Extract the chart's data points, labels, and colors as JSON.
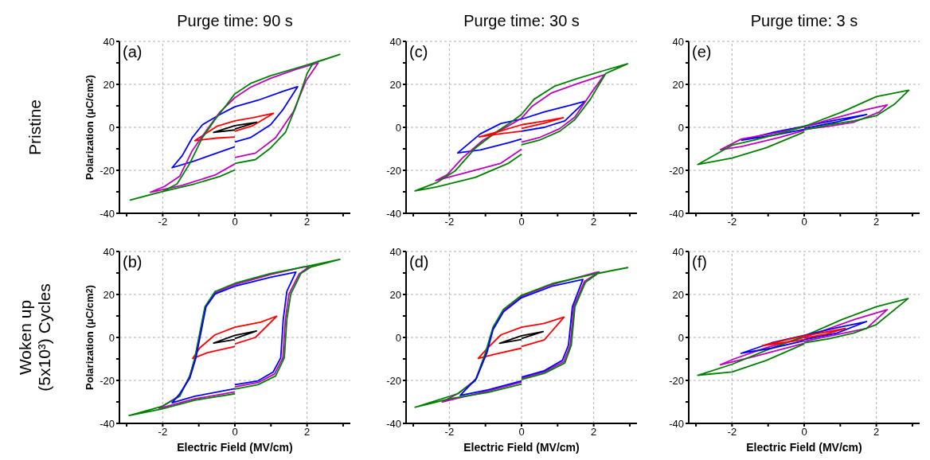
{
  "chart_data": [
    {
      "type": "line",
      "title": "Purge time: 90 s",
      "ylabel": "Polarization (μC/cm$^{2}$)",
      "annotations": [
        "(a)",
        "Pristine"
      ],
      "xlim": [
        -3.2,
        3.2
      ],
      "ylim": [
        -40,
        40
      ],
      "xticks": [
        {
          "value": -3,
          "label": null
        },
        -2,
        {
          "value": -1,
          "label": null
        },
        0,
        {
          "value": 1,
          "label": null
        },
        2,
        {
          "value": 3,
          "label": null
        }
      ],
      "yticks": [
        -40,
        {
          "value": -30,
          "label": null
        },
        -20,
        {
          "value": -10,
          "label": null
        },
        0,
        {
          "value": 10,
          "label": null
        },
        20,
        {
          "value": 30,
          "label": null
        },
        40
      ],
      "grid": true,
      "series": [
        {
          "color": "#ff0000",
          "x": [
            0,
            0.5,
            1.07,
            0.5,
            0,
            -0.5,
            -1.11,
            -0.5,
            0
          ],
          "values": [
            -1.8,
            0.8,
            6.5,
            4.5,
            3,
            0.5,
            -6.2,
            -5,
            -4.5
          ]
        },
        {
          "color": "#0000ff",
          "x": [
            0,
            0.43,
            0.99,
            1.34,
            1.74,
            1.34,
            0.64,
            0,
            -0.41,
            -0.9,
            -1.18,
            -1.46,
            -1.74,
            -1.11,
            -0.41,
            0
          ],
          "values": [
            -6.8,
            -4.8,
            1.2,
            8.4,
            18.9,
            16.8,
            12.6,
            9.6,
            6,
            1.2,
            -4.8,
            -13.2,
            -18.8,
            -15.6,
            -11.4,
            -9
          ]
        },
        {
          "color": "#c000c0",
          "x": [
            0,
            0.57,
            1.13,
            1.62,
            1.97,
            2.31,
            1.69,
            0.99,
            0.43,
            0,
            -0.41,
            -0.83,
            -1.18,
            -1.53,
            -1.95,
            -2.34,
            -1.46,
            -0.55,
            0
          ],
          "values": [
            -14,
            -12,
            -4.8,
            7.2,
            21.6,
            30,
            27,
            22.8,
            18.6,
            13.8,
            7.2,
            -2.4,
            -10.8,
            -22.8,
            -27.5,
            -30.2,
            -27,
            -22.2,
            -17
          ]
        },
        {
          "color": "#008000",
          "x": [
            0,
            0.57,
            0.99,
            1.4,
            1.69,
            2,
            2.17,
            2.91,
            2.38,
            1.69,
            0.99,
            0.43,
            0,
            -0.27,
            -0.55,
            -0.9,
            -1.25,
            -1.6,
            -2.02,
            -2.9,
            -2.16,
            -1.11,
            -0.41,
            0
          ],
          "values": [
            -16.8,
            -15,
            -9.6,
            -2.4,
            9.6,
            25,
            30,
            33.9,
            31,
            27.5,
            24,
            20.4,
            15.6,
            9.6,
            3.6,
            -4.8,
            -16.8,
            -26.3,
            -30,
            -33.8,
            -30.5,
            -26.3,
            -22.8,
            -19.8
          ]
        },
        {
          "color": "#000000",
          "x": [
            0,
            0.6,
            0,
            -0.59,
            0
          ],
          "values": [
            -0.8,
            2.4,
            0.8,
            -2.4,
            -1.2
          ]
        }
      ]
    },
    {
      "type": "line",
      "title": "Purge time: 30 s",
      "annotations": [
        "(c)"
      ],
      "xlim": [
        -3.2,
        3.2
      ],
      "ylim": [
        -40,
        40
      ],
      "xticks": [
        {
          "value": -3,
          "label": null
        },
        -2,
        {
          "value": -1,
          "label": null
        },
        0,
        {
          "value": 1,
          "label": null
        },
        2,
        {
          "value": 3,
          "label": null
        }
      ],
      "yticks": [
        -40,
        {
          "value": -30,
          "label": null
        },
        -20,
        {
          "value": -10,
          "label": null
        },
        0,
        {
          "value": 10,
          "label": null
        },
        20,
        {
          "value": 30,
          "label": null
        },
        40
      ],
      "grid": true,
      "series": [
        {
          "color": "#0000ff",
          "x": [
            0,
            0.63,
            1.2,
            1.77,
            1.34,
            0.63,
            0,
            -0.57,
            -1.14,
            -1.77,
            -1.14,
            -0.36,
            0
          ],
          "values": [
            -1.8,
            0,
            3,
            12.2,
            10.2,
            7.2,
            3.8,
            1.8,
            -3,
            -11.9,
            -10.5,
            -7.2,
            -5.4
          ]
        },
        {
          "color": "#c000c0",
          "x": [
            0,
            0.49,
            1.06,
            1.48,
            1.91,
            2.3,
            1.55,
            0.84,
            0.28,
            0,
            -0.5,
            -1.07,
            -1.64,
            -2.06,
            -2.38,
            -1.64,
            -0.57,
            0
          ],
          "values": [
            -6.9,
            -4.8,
            -0.6,
            4.8,
            15.5,
            24.5,
            20.3,
            16.1,
            9.6,
            4.2,
            -0.6,
            -6,
            -14.3,
            -22.1,
            -24.8,
            -21.5,
            -16.7,
            -10.2
          ]
        },
        {
          "color": "#008000",
          "x": [
            0,
            0.49,
            1.06,
            1.48,
            1.91,
            2.33,
            2.94,
            2.26,
            1.55,
            0.91,
            0.35,
            0,
            -0.29,
            -0.72,
            -1.28,
            -1.84,
            -2.35,
            -2.95,
            -2.35,
            -1.28,
            -0.36,
            0
          ],
          "values": [
            -8.1,
            -6,
            -1.8,
            3.6,
            13.1,
            25,
            29.6,
            26.3,
            22.7,
            19.1,
            13.1,
            6,
            2.4,
            -2.4,
            -9.6,
            -20.3,
            -25.7,
            -29.6,
            -27.7,
            -23.3,
            -16.7,
            -12.5
          ]
        },
        {
          "color": "#ff0000",
          "x": [
            0,
            0.6,
            1.16,
            0.6,
            0,
            -0.6,
            -1.18,
            -0.6,
            0
          ],
          "values": [
            -0.5,
            1.8,
            4.5,
            2.8,
            1.2,
            -1.8,
            -4.5,
            -3,
            -1.8
          ]
        }
      ]
    },
    {
      "type": "line",
      "title": "Purge time: 3 s",
      "annotations": [
        "(e)"
      ],
      "xlim": [
        -3.2,
        3.2
      ],
      "ylim": [
        -40,
        40
      ],
      "xticks": [
        {
          "value": -3,
          "label": null
        },
        -2,
        {
          "value": -1,
          "label": null
        },
        0,
        {
          "value": 1,
          "label": null
        },
        2,
        {
          "value": 3,
          "label": null
        }
      ],
      "yticks": [
        -40,
        {
          "value": -30,
          "label": null
        },
        -20,
        {
          "value": -10,
          "label": null
        },
        0,
        {
          "value": 10,
          "label": null
        },
        20,
        {
          "value": 30,
          "label": null
        },
        40
      ],
      "grid": true,
      "series": [
        {
          "color": "#0000ff",
          "x": [
            0,
            0.9,
            1.73,
            0.9,
            0,
            -0.9,
            -1.73,
            -0.9,
            0
          ],
          "values": [
            -0.5,
            2.5,
            6,
            3.5,
            0.5,
            -2.5,
            -6,
            -3.8,
            -1
          ]
        },
        {
          "color": "#c000c0",
          "x": [
            0,
            0.69,
            1.38,
            2.08,
            2.3,
            1.73,
            0.69,
            0,
            -0.7,
            -1.74,
            -2.32,
            -1.74,
            -0.7,
            0
          ],
          "values": [
            -1,
            0.5,
            2.4,
            7.1,
            10.4,
            8.3,
            3.6,
            0.2,
            -2.4,
            -5.4,
            -10.4,
            -8.9,
            -4.8,
            -1.4
          ]
        },
        {
          "color": "#008000",
          "x": [
            0,
            0.69,
            1.38,
            2,
            2.5,
            2.9,
            2,
            1.04,
            0,
            -0.7,
            -1.4,
            -2,
            -2.95,
            -2,
            -1.05,
            0
          ],
          "values": [
            -1.2,
            1.2,
            3,
            5.4,
            10.7,
            17.3,
            14.3,
            7.1,
            0.4,
            -3,
            -6,
            -8.3,
            -17.3,
            -14.3,
            -9.5,
            -2.2
          ]
        }
      ]
    },
    {
      "type": "line",
      "xlabel": "Electric Field (MV/cm)",
      "ylabel": "Polarization (μC/cm$^{2}$)",
      "annotations": [
        "(b)",
        "Woken up (5x10³) Cycles"
      ],
      "xlim": [
        -3.2,
        3.2
      ],
      "ylim": [
        -40,
        40
      ],
      "xticks": [
        {
          "value": -3,
          "label": null
        },
        -2,
        {
          "value": -1,
          "label": null
        },
        0,
        {
          "value": 1,
          "label": null
        },
        2,
        {
          "value": 3,
          "label": null
        }
      ],
      "yticks": [
        -40,
        {
          "value": -30,
          "label": null
        },
        -20,
        {
          "value": -10,
          "label": null
        },
        0,
        {
          "value": 10,
          "label": null
        },
        20,
        {
          "value": 30,
          "label": null
        },
        40
      ],
      "grid": true,
      "series": [
        {
          "color": "#ff0000",
          "x": [
            0,
            0.57,
            1.16,
            0.71,
            0,
            -0.55,
            -0.97,
            -1.17,
            -0.76,
            0
          ],
          "values": [
            -3,
            0,
            9.9,
            7.1,
            4.8,
            1.2,
            -4.8,
            -9.8,
            -7.1,
            -4.2
          ]
        },
        {
          "color": "#c000c0",
          "x": [
            0,
            0.64,
            1.1,
            1.33,
            1.4,
            1.5,
            1.78,
            2.05,
            1.9,
            0.99,
            0,
            -0.55,
            -0.82,
            -0.96,
            -1.1,
            -1.25,
            -1.53,
            -2.1,
            -1.11,
            0
          ],
          "values": [
            -23,
            -21,
            -17,
            -9.5,
            8.3,
            20.2,
            29.5,
            32.8,
            32.8,
            29.3,
            24.6,
            20.8,
            14.3,
            2.4,
            -9.5,
            -17.9,
            -27,
            -33,
            -28.6,
            -25.3
          ]
        },
        {
          "color": "#008000",
          "x": [
            0,
            0.64,
            1.13,
            1.37,
            1.44,
            1.55,
            1.83,
            2.1,
            2.91,
            2,
            0.99,
            0,
            -0.55,
            -0.83,
            -0.97,
            -1.11,
            -1.25,
            -1.53,
            -2.02,
            -2.93,
            -2.02,
            -1.11,
            0
          ],
          "values": [
            -24,
            -22,
            -17.9,
            -9.5,
            8.3,
            20.2,
            29.8,
            32.7,
            36.3,
            33.1,
            29.8,
            25.2,
            21.4,
            14.3,
            2.4,
            -9.5,
            -17.9,
            -27.4,
            -32.1,
            -36.3,
            -33.3,
            -29.2,
            -26.2
          ]
        },
        {
          "color": "#0000ff",
          "x": [
            0,
            0.64,
            1.06,
            1.27,
            1.34,
            1.44,
            1.69,
            0.99,
            0,
            -0.55,
            -0.8,
            -0.94,
            -1.08,
            -1.25,
            -1.53,
            -1.74,
            -1.11,
            0
          ],
          "values": [
            -22,
            -20.2,
            -16.1,
            -9.5,
            8.3,
            21.4,
            30.4,
            28,
            23.8,
            20.2,
            14.3,
            2.4,
            -9.5,
            -19,
            -26.2,
            -30.4,
            -27.4,
            -23.8
          ]
        },
        {
          "color": "#000000",
          "x": [
            0,
            0.6,
            0,
            -0.59,
            0
          ],
          "values": [
            -0.5,
            3,
            1,
            -2.6,
            -1
          ]
        }
      ]
    },
    {
      "type": "line",
      "xlabel": "Electric Field (MV/cm)",
      "annotations": [
        "(d)"
      ],
      "xlim": [
        -3.2,
        3.2
      ],
      "ylim": [
        -40,
        40
      ],
      "xticks": [
        {
          "value": -3,
          "label": null
        },
        -2,
        {
          "value": -1,
          "label": null
        },
        0,
        {
          "value": 1,
          "label": null
        },
        2,
        {
          "value": 3,
          "label": null
        }
      ],
      "yticks": [
        -40,
        {
          "value": -30,
          "label": null
        },
        -20,
        {
          "value": -10,
          "label": null
        },
        0,
        {
          "value": 10,
          "label": null
        },
        20,
        {
          "value": 30,
          "label": null
        },
        40
      ],
      "grid": true,
      "series": [
        {
          "color": "#ff0000",
          "x": [
            0,
            0.63,
            1.18,
            0.63,
            0,
            -0.57,
            -0.93,
            -1.2,
            -0.72,
            0
          ],
          "values": [
            -4.2,
            -1.2,
            9.5,
            6.5,
            4.8,
            1.2,
            -4.8,
            -9.8,
            -7.7,
            -5
          ]
        },
        {
          "color": "#c000c0",
          "x": [
            0,
            0.63,
            1.17,
            1.35,
            1.45,
            1.74,
            2.15,
            2,
            0.84,
            0,
            -0.5,
            -0.79,
            -0.98,
            -1.27,
            -1.75,
            -2.2,
            -1.75,
            -0.93,
            0
          ],
          "values": [
            -19,
            -16.1,
            -11.3,
            -3.6,
            14.3,
            26,
            30.5,
            30,
            24.6,
            19.1,
            12.5,
            4.2,
            -7.1,
            -19.6,
            -26,
            -30,
            -28.2,
            -25,
            -20.8
          ]
        },
        {
          "color": "#008000",
          "x": [
            0,
            0.63,
            1.2,
            1.38,
            1.48,
            1.77,
            2.12,
            2.94,
            2,
            0.84,
            0,
            -0.5,
            -0.79,
            -1,
            -1.28,
            -1.77,
            -2.95,
            -2,
            -0.93,
            0
          ],
          "values": [
            -19.6,
            -16.7,
            -11.9,
            -3.6,
            14.3,
            25.6,
            29.8,
            32.5,
            29.5,
            25,
            19.6,
            13.1,
            4.8,
            -7.1,
            -20.2,
            -26.2,
            -32.5,
            -28.6,
            -25.6,
            -21.7
          ]
        },
        {
          "color": "#0000ff",
          "x": [
            0,
            0.63,
            1.13,
            1.3,
            1.41,
            1.7,
            0.84,
            0,
            -0.5,
            -0.79,
            -0.96,
            -1.25,
            -1.7,
            -0.93,
            0
          ],
          "values": [
            -18.5,
            -15.5,
            -10.7,
            -3.6,
            14.3,
            27,
            23.8,
            18.5,
            11.9,
            3.6,
            -7.1,
            -19,
            -27,
            -24.4,
            -20.2
          ]
        },
        {
          "color": "#000000",
          "x": [
            0,
            0.6,
            0,
            -0.61,
            0
          ],
          "values": [
            -0.5,
            2.7,
            0.8,
            -2.7,
            -1
          ]
        }
      ]
    },
    {
      "type": "line",
      "xlabel": "Electric Field (MV/cm)",
      "annotations": [
        "(f)"
      ],
      "xlim": [
        -3.2,
        3.2
      ],
      "ylim": [
        -40,
        40
      ],
      "xticks": [
        {
          "value": -3,
          "label": null
        },
        -2,
        {
          "value": -1,
          "label": null
        },
        0,
        {
          "value": 1,
          "label": null
        },
        2,
        {
          "value": 3,
          "label": null
        }
      ],
      "yticks": [
        -40,
        {
          "value": -30,
          "label": null
        },
        -20,
        {
          "value": -10,
          "label": null
        },
        0,
        {
          "value": 10,
          "label": null
        },
        20,
        {
          "value": 30,
          "label": null
        },
        40
      ],
      "grid": true,
      "series": [
        {
          "color": "#c000c0",
          "x": [
            0,
            1.04,
            1.73,
            2.3,
            1.38,
            0,
            -1.05,
            -1.96,
            -2.32,
            -1.4,
            0
          ],
          "values": [
            -1.8,
            1.8,
            4.2,
            12.9,
            8.3,
            0,
            -4.8,
            -10.1,
            -12.7,
            -8.9,
            -2.7
          ]
        },
        {
          "color": "#008000",
          "x": [
            0,
            0.69,
            1.38,
            2,
            2.88,
            2,
            1.04,
            0,
            -1.05,
            -2,
            -2.95,
            -2,
            -1.05,
            0
          ],
          "values": [
            -2.5,
            -0.6,
            2.1,
            6,
            18.1,
            14.3,
            8.3,
            0.6,
            -6,
            -12.5,
            -17.6,
            -16.1,
            -10.7,
            -3
          ]
        },
        {
          "color": "#0000ff",
          "x": [
            0,
            0.9,
            1.73,
            0.9,
            0,
            -0.9,
            -1.75,
            -0.9,
            0
          ],
          "values": [
            -1,
            2,
            7.4,
            4.5,
            1,
            -2.5,
            -7.4,
            -5,
            -1.5
          ]
        },
        {
          "color": "#ff0000",
          "x": [
            0,
            0.6,
            1.14,
            0.6,
            0,
            -0.6,
            -1.16,
            -0.6,
            0
          ],
          "values": [
            -0.3,
            1.5,
            4.2,
            2.5,
            0.8,
            -1.5,
            -3.8,
            -2.5,
            -1
          ]
        }
      ]
    }
  ]
}
